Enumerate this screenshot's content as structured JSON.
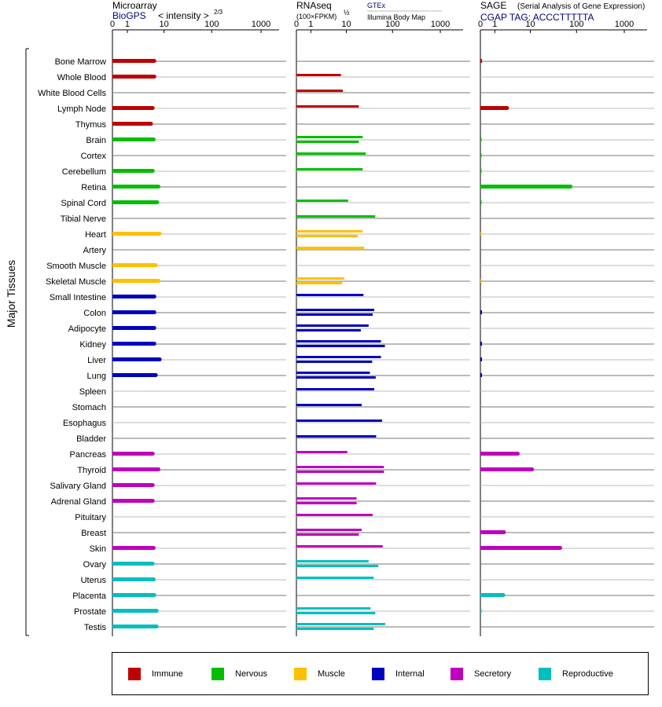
{
  "panels": {
    "microarray": {
      "title": "Microarray",
      "source_link": "BioGPS",
      "metric_label": "< intensity >",
      "metric_exponent": "2/3"
    },
    "rnaseq": {
      "title": "RNAseq",
      "unit_label": "(100×FPKM)",
      "unit_exponent": "½",
      "source_link": "GTEx",
      "source_secondary": "Illumina Body Map"
    },
    "sage": {
      "title": "SAGE",
      "subtitle": "(Serial Analysis of Gene Expression)",
      "tag_label": "CGAP TAG: ACCCTTTTTA"
    }
  },
  "side_label": "Major Tissues",
  "colors": {
    "Immune": "#bf0000",
    "Nervous": "#00bf00",
    "Muscle": "#ffc000",
    "Internal": "#0000bf",
    "Secretory": "#bf00bf",
    "Reproductive": "#00bfbf",
    "link": "#000080"
  },
  "legend": [
    {
      "label": "Immune",
      "color": "#bf0000"
    },
    {
      "label": "Nervous",
      "color": "#00bf00"
    },
    {
      "label": "Muscle",
      "color": "#ffc000"
    },
    {
      "label": "Internal",
      "color": "#0000bf"
    },
    {
      "label": "Secretory",
      "color": "#bf00bf"
    },
    {
      "label": "Reproductive",
      "color": "#00bfbf"
    }
  ],
  "chart_data": {
    "type": "bar",
    "orientation": "horizontal",
    "x_scale": "log1p",
    "x_ticks": [
      "0",
      "1",
      "10",
      "100",
      "1000"
    ],
    "x_tick_values": [
      0,
      1,
      10,
      100,
      1000
    ],
    "xlim": [
      0,
      1000
    ],
    "tissues": [
      {
        "name": "Bone Marrow",
        "group": "Immune",
        "microarray": 6.0,
        "rnaseq": [],
        "sage": 0.08
      },
      {
        "name": "Whole Blood",
        "group": "Immune",
        "microarray": 6.0,
        "rnaseq": [
          7.5
        ],
        "sage": 0
      },
      {
        "name": "White Blood Cells",
        "group": "Immune",
        "microarray": null,
        "rnaseq": [
          8.3
        ],
        "sage": 0
      },
      {
        "name": "Lymph Node",
        "group": "Immune",
        "microarray": 5.5,
        "rnaseq": [
          19
        ],
        "sage": 2.6
      },
      {
        "name": "Thymus",
        "group": "Immune",
        "microarray": 5.0,
        "rnaseq": [],
        "sage": 0
      },
      {
        "name": "Brain",
        "group": "Nervous",
        "microarray": 5.8,
        "rnaseq": [
          23,
          19
        ],
        "sage": 0.02
      },
      {
        "name": "Cortex",
        "group": "Nervous",
        "microarray": null,
        "rnaseq": [
          27
        ],
        "sage": 0.02
      },
      {
        "name": "Cerebellum",
        "group": "Nervous",
        "microarray": 5.5,
        "rnaseq": [
          23
        ],
        "sage": 0.02
      },
      {
        "name": "Retina",
        "group": "Nervous",
        "microarray": 7.5,
        "rnaseq": [],
        "sage": 75
      },
      {
        "name": "Spinal Cord",
        "group": "Nervous",
        "microarray": 7.0,
        "rnaseq": [
          11
        ],
        "sage": 0.02
      },
      {
        "name": "Tibial Nerve",
        "group": "Nervous",
        "microarray": null,
        "rnaseq": [
          43
        ],
        "sage": 0
      },
      {
        "name": "Heart",
        "group": "Muscle",
        "microarray": 8.0,
        "rnaseq": [
          23,
          18
        ],
        "sage": 0.02
      },
      {
        "name": "Artery",
        "group": "Muscle",
        "microarray": null,
        "rnaseq": [
          25
        ],
        "sage": 0
      },
      {
        "name": "Smooth Muscle",
        "group": "Muscle",
        "microarray": 6.5,
        "rnaseq": [],
        "sage": 0
      },
      {
        "name": "Skeletal Muscle",
        "group": "Muscle",
        "microarray": 7.5,
        "rnaseq": [
          9.0,
          8.0
        ],
        "sage": 0.02
      },
      {
        "name": "Small Intestine",
        "group": "Internal",
        "microarray": 6.0,
        "rnaseq": [
          24
        ],
        "sage": 0
      },
      {
        "name": "Colon",
        "group": "Internal",
        "microarray": 6.0,
        "rnaseq": [
          41,
          38
        ],
        "sage": 0.08
      },
      {
        "name": "Adipocyte",
        "group": "Internal",
        "microarray": 6.0,
        "rnaseq": [
          31,
          21
        ],
        "sage": 0
      },
      {
        "name": "Kidney",
        "group": "Internal",
        "microarray": 6.0,
        "rnaseq": [
          57,
          69
        ],
        "sage": 0.08
      },
      {
        "name": "Liver",
        "group": "Internal",
        "microarray": 8.0,
        "rnaseq": [
          57,
          37
        ],
        "sage": 0.08
      },
      {
        "name": "Lung",
        "group": "Internal",
        "microarray": 6.5,
        "rnaseq": [
          33,
          44
        ],
        "sage": 0.08
      },
      {
        "name": "Spleen",
        "group": "Internal",
        "microarray": null,
        "rnaseq": [
          41
        ],
        "sage": 0
      },
      {
        "name": "Stomach",
        "group": "Internal",
        "microarray": null,
        "rnaseq": [
          22
        ],
        "sage": 0
      },
      {
        "name": "Esophagus",
        "group": "Internal",
        "microarray": null,
        "rnaseq": [
          60
        ],
        "sage": 0
      },
      {
        "name": "Bladder",
        "group": "Internal",
        "microarray": null,
        "rnaseq": [
          45
        ],
        "sage": 0
      },
      {
        "name": "Pancreas",
        "group": "Secretory",
        "microarray": 5.5,
        "rnaseq": [
          10.5
        ],
        "sage": 5.0
      },
      {
        "name": "Thyroid",
        "group": "Secretory",
        "microarray": 7.5,
        "rnaseq": [
          66,
          66
        ],
        "sage": 11
      },
      {
        "name": "Salivary Gland",
        "group": "Secretory",
        "microarray": 5.5,
        "rnaseq": [
          45
        ],
        "sage": 0
      },
      {
        "name": "Adrenal Gland",
        "group": "Secretory",
        "microarray": 5.5,
        "rnaseq": [
          17,
          17
        ],
        "sage": 0
      },
      {
        "name": "Pituitary",
        "group": "Secretory",
        "microarray": null,
        "rnaseq": [
          38
        ],
        "sage": 0
      },
      {
        "name": "Breast",
        "group": "Secretory",
        "microarray": null,
        "rnaseq": [
          22,
          19
        ],
        "sage": 2.1
      },
      {
        "name": "Skin",
        "group": "Secretory",
        "microarray": 5.8,
        "rnaseq": [
          62
        ],
        "sage": 45
      },
      {
        "name": "Ovary",
        "group": "Reproductive",
        "microarray": 5.5,
        "rnaseq": [
          31,
          50
        ],
        "sage": 0
      },
      {
        "name": "Uterus",
        "group": "Reproductive",
        "microarray": 5.8,
        "rnaseq": [
          40
        ],
        "sage": 0
      },
      {
        "name": "Placenta",
        "group": "Reproductive",
        "microarray": 6.0,
        "rnaseq": [],
        "sage": 2.0
      },
      {
        "name": "Prostate",
        "group": "Reproductive",
        "microarray": 6.8,
        "rnaseq": [
          34,
          43
        ],
        "sage": 0.02
      },
      {
        "name": "Testis",
        "group": "Reproductive",
        "microarray": 6.8,
        "rnaseq": [
          70,
          40
        ],
        "sage": 0
      }
    ]
  }
}
